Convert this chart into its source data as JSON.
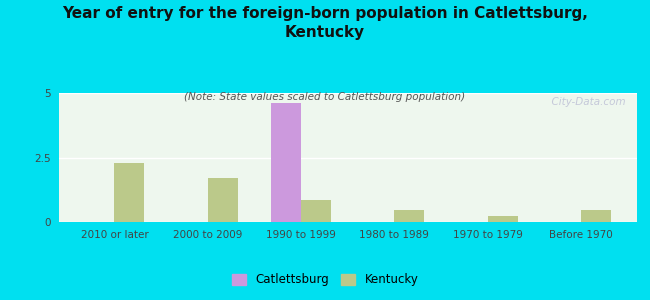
{
  "title": "Year of entry for the foreign-born population in Catlettsburg,\nKentucky",
  "subtitle": "(Note: State values scaled to Catlettsburg population)",
  "categories": [
    "2010 or later",
    "2000 to 2009",
    "1990 to 1999",
    "1980 to 1989",
    "1970 to 1979",
    "Before 1970"
  ],
  "catlettsburg_values": [
    0,
    0,
    4.6,
    0,
    0,
    0
  ],
  "kentucky_values": [
    2.3,
    1.7,
    0.85,
    0.45,
    0.25,
    0.45
  ],
  "catlettsburg_color": "#cc99dd",
  "kentucky_color": "#bbc98a",
  "background_outer": "#00e0f0",
  "background_plot": "#eef7ee",
  "ylim": [
    0,
    5
  ],
  "yticks": [
    0,
    2.5,
    5
  ],
  "watermark": "  City-Data.com",
  "bar_width": 0.32,
  "title_fontsize": 11,
  "subtitle_fontsize": 7.5,
  "tick_fontsize": 7.5,
  "legend_fontsize": 8.5
}
